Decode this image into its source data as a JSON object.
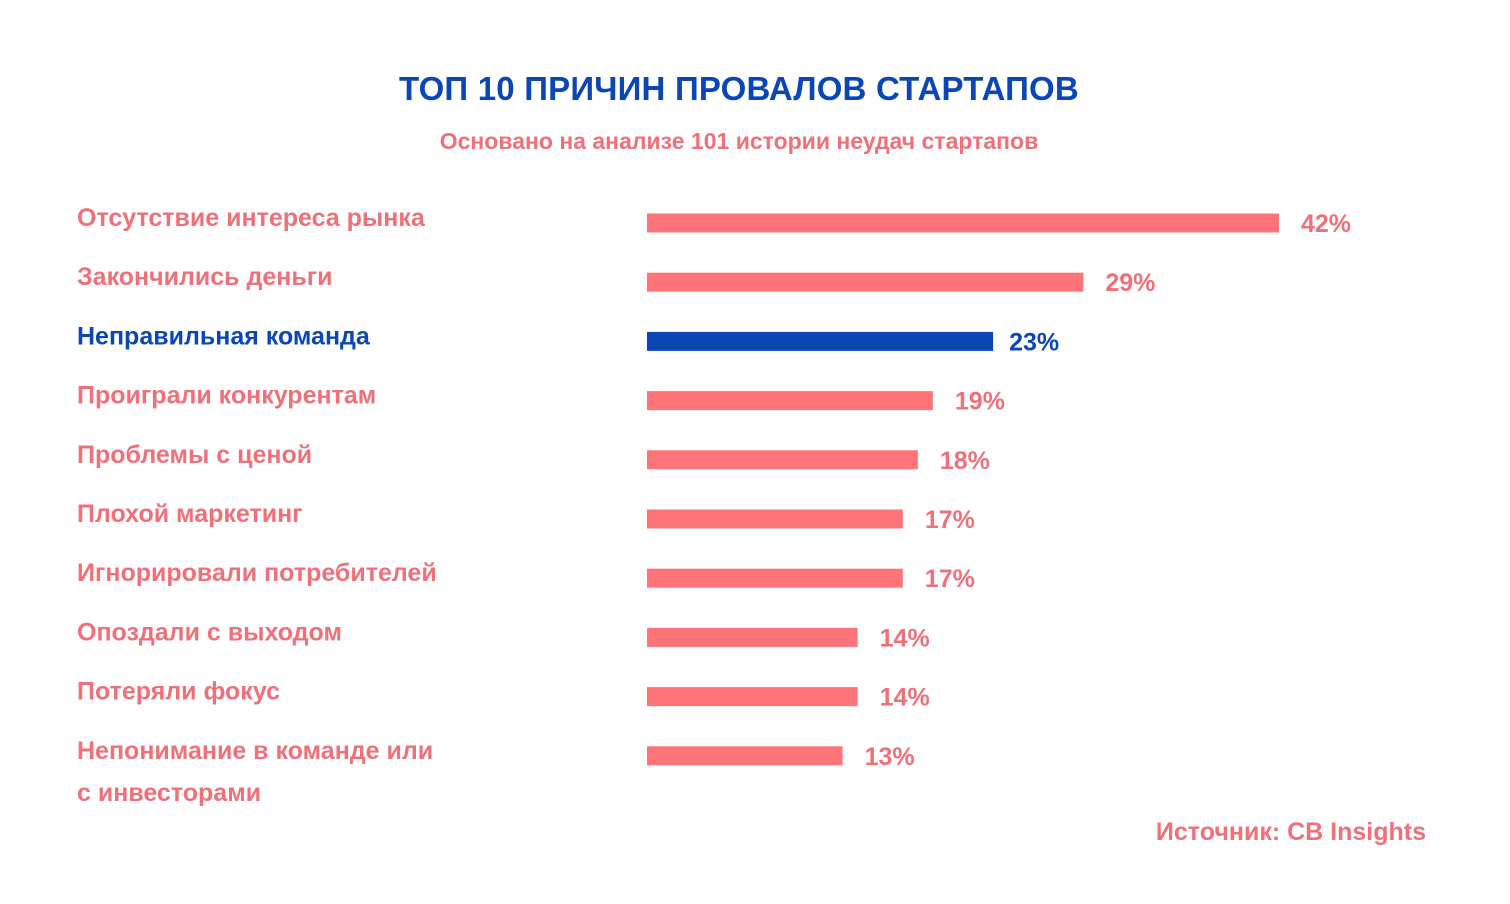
{
  "chart_data": {
    "type": "bar",
    "orientation": "horizontal",
    "title": "ТОП 10 ПРИЧИН ПРОВАЛОВ СТАРТАПОВ",
    "subtitle": "Основано на анализе 101 истории неудач стартапов",
    "categories": [
      [
        "Отсутствие интереса рынка"
      ],
      [
        "Закончились деньги"
      ],
      [
        "Неправильная команда"
      ],
      [
        "Проиграли конкурентам"
      ],
      [
        "Проблемы с ценой"
      ],
      [
        "Плохой маркетинг"
      ],
      [
        "Игнорировали потребителей"
      ],
      [
        "Опоздали с выходом"
      ],
      [
        "Потеряли фокус"
      ],
      [
        "Непонимание в команде или",
        "с инвесторами"
      ]
    ],
    "values": [
      42,
      29,
      23,
      19,
      18,
      17,
      17,
      14,
      14,
      13
    ],
    "value_labels": [
      "42%",
      "29%",
      "23%",
      "19%",
      "18%",
      "17%",
      "17%",
      "14%",
      "14%",
      "13%"
    ],
    "highlight_index": 2,
    "unit": "%",
    "xlim": [
      0,
      42
    ],
    "grid": false,
    "legend": "none",
    "colors": {
      "bar": "#ff7479",
      "highlight": "#0a47b5",
      "label": "#f0707a",
      "title": "#0a47b5"
    },
    "source": "Источник: CB Insights"
  }
}
